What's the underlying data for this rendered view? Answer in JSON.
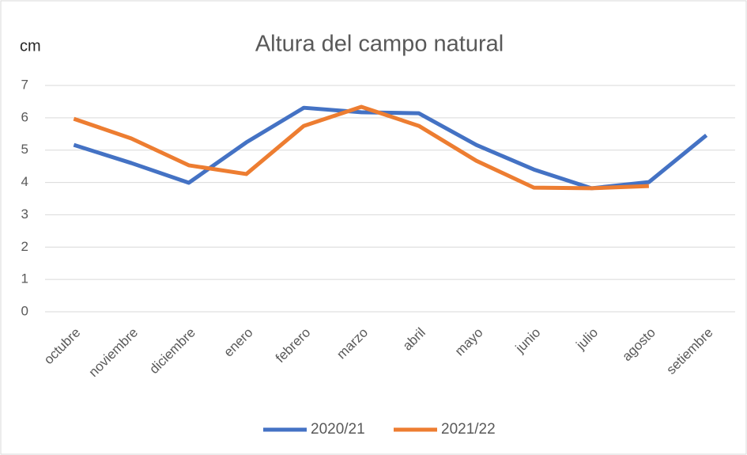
{
  "chart_data": {
    "type": "line",
    "title": "Altura del campo natural",
    "y_label": "cm",
    "categories": [
      "octubre",
      "noviembre",
      "diciembre",
      "enero",
      "febrero",
      "marzo",
      "abril",
      "mayo",
      "junio",
      "julio",
      "agosto",
      "setiembre"
    ],
    "series": [
      {
        "name": "2020/21",
        "color": "#4472c4",
        "values": [
          5.16,
          4.6,
          3.99,
          5.24,
          6.31,
          6.17,
          6.14,
          5.16,
          4.4,
          3.82,
          4.01,
          5.46
        ]
      },
      {
        "name": "2021/22",
        "color": "#ed7d31",
        "values": [
          5.97,
          5.36,
          4.53,
          4.26,
          5.75,
          6.34,
          5.75,
          4.67,
          3.84,
          3.82,
          3.89,
          null
        ]
      }
    ],
    "ylim": [
      0,
      7
    ],
    "yticks": [
      0,
      1,
      2,
      3,
      4,
      5,
      6,
      7
    ],
    "grid": true,
    "legend": "bottom"
  }
}
